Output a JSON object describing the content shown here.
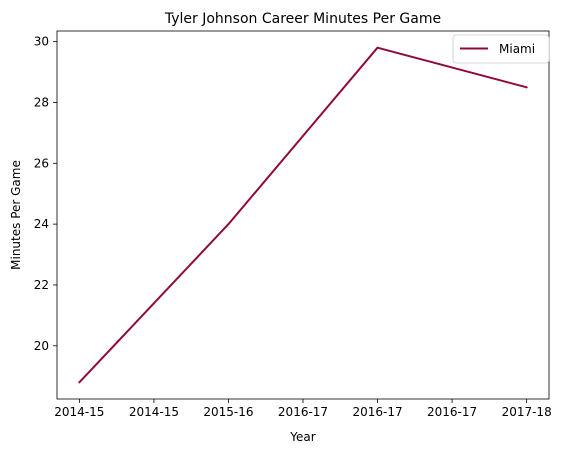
{
  "chart_data": {
    "type": "line",
    "title": "Tyler Johnson  Career Minutes Per Game",
    "xlabel": "Year",
    "ylabel": "Minutes Per Game",
    "x_tick_labels": [
      "2014-15",
      "2014-15",
      "2015-16",
      "2016-17",
      "2016-17",
      "2016-17",
      "2017-18"
    ],
    "x_tick_positions": [
      0,
      0.5,
      1,
      1.5,
      2,
      2.5,
      3
    ],
    "xlim": [
      -0.15,
      3.15
    ],
    "y_ticks": [
      20,
      22,
      24,
      26,
      28,
      30
    ],
    "ylim": [
      18.25,
      30.35
    ],
    "grid": false,
    "legend_position": "upper right",
    "series": [
      {
        "name": "Miami",
        "color": "#8f0a3c",
        "x": [
          0,
          1,
          2,
          3
        ],
        "values": [
          18.8,
          24.0,
          29.8,
          28.5
        ]
      }
    ]
  }
}
